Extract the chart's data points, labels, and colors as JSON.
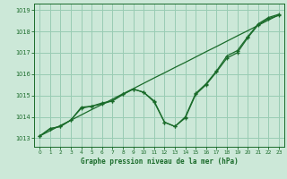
{
  "title": "Graphe pression niveau de la mer (hPa)",
  "bg_color": "#cce8d8",
  "grid_color": "#99ccb3",
  "line_color": "#1a6b2a",
  "xlim": [
    -0.5,
    23.5
  ],
  "ylim": [
    1012.6,
    1019.3
  ],
  "yticks": [
    1013,
    1014,
    1015,
    1016,
    1017,
    1018,
    1019
  ],
  "xticks": [
    0,
    1,
    2,
    3,
    4,
    5,
    6,
    7,
    8,
    9,
    10,
    11,
    12,
    13,
    14,
    15,
    16,
    17,
    18,
    19,
    20,
    21,
    22,
    23
  ],
  "line_straight": [
    1013.1,
    1013.35,
    1013.6,
    1013.84,
    1014.09,
    1014.34,
    1014.58,
    1014.83,
    1015.08,
    1015.32,
    1015.57,
    1015.82,
    1016.06,
    1016.31,
    1016.55,
    1016.8,
    1017.05,
    1017.29,
    1017.54,
    1017.79,
    1018.03,
    1018.28,
    1018.53,
    1018.77
  ],
  "line_dip1": [
    1013.1,
    1013.45,
    1013.55,
    1013.85,
    1014.45,
    1014.5,
    1014.65,
    1014.75,
    1015.05,
    1015.3,
    1015.15,
    1014.75,
    1013.75,
    1013.55,
    1014.0,
    1015.1,
    1015.55,
    1016.15,
    1016.85,
    1017.1,
    1017.75,
    1018.35,
    1018.65,
    1018.8
  ],
  "line_dip2": [
    1013.1,
    1013.45,
    1013.55,
    1013.85,
    1014.4,
    1014.5,
    1014.6,
    1014.75,
    1015.05,
    1015.3,
    1015.15,
    1014.7,
    1013.75,
    1013.55,
    1013.95,
    1015.05,
    1015.5,
    1016.1,
    1016.75,
    1017.0,
    1017.7,
    1018.3,
    1018.6,
    1018.75
  ]
}
